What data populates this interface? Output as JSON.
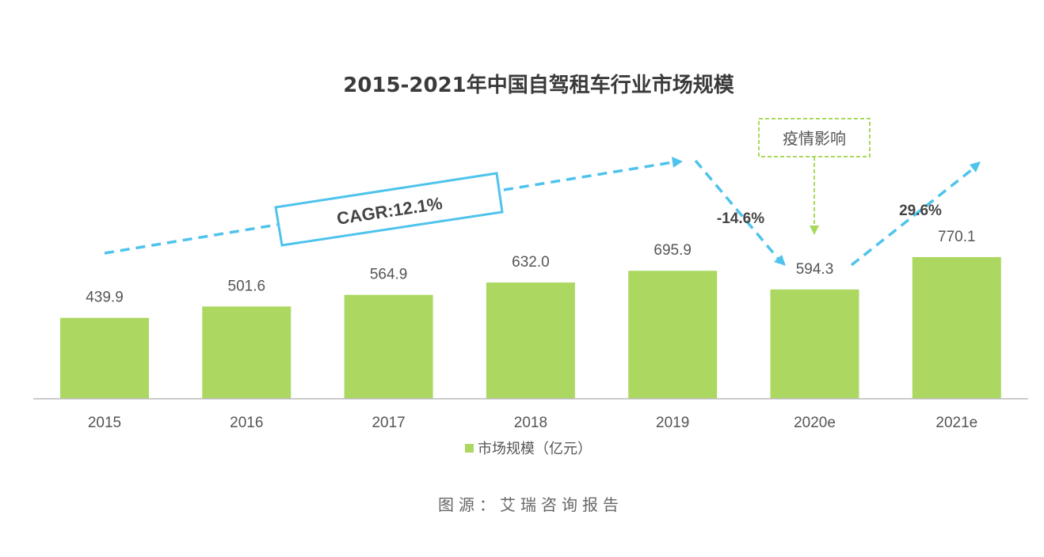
{
  "chart_data": {
    "type": "bar",
    "title": "2015-2021年中国自驾租车行业市场规模",
    "categories": [
      "2015",
      "2016",
      "2017",
      "2018",
      "2019",
      "2020e",
      "2021e"
    ],
    "series": [
      {
        "name": "市场规模（亿元）",
        "values": [
          439.9,
          501.6,
          564.9,
          632.0,
          695.9,
          594.3,
          770.1
        ]
      }
    ],
    "value_labels": [
      "439.9",
      "501.6",
      "564.9",
      "632.0",
      "695.9",
      "594.3",
      "770.1"
    ],
    "xlabel": "",
    "ylabel": "",
    "ylim": [
      0,
      800
    ],
    "grid": false,
    "legend": {
      "position": "bottom",
      "label": "市场规模（亿元）"
    },
    "annotations": {
      "cagr": "CAGR:12.1%",
      "decline": "-14.6%",
      "growth": "29.6%",
      "covid": "疫情影响"
    },
    "colors": {
      "bar": "#acd862",
      "arrow": "#4ec3ec",
      "covid": "#a9d95b"
    }
  },
  "source": "图源：艾瑞咨询报告"
}
